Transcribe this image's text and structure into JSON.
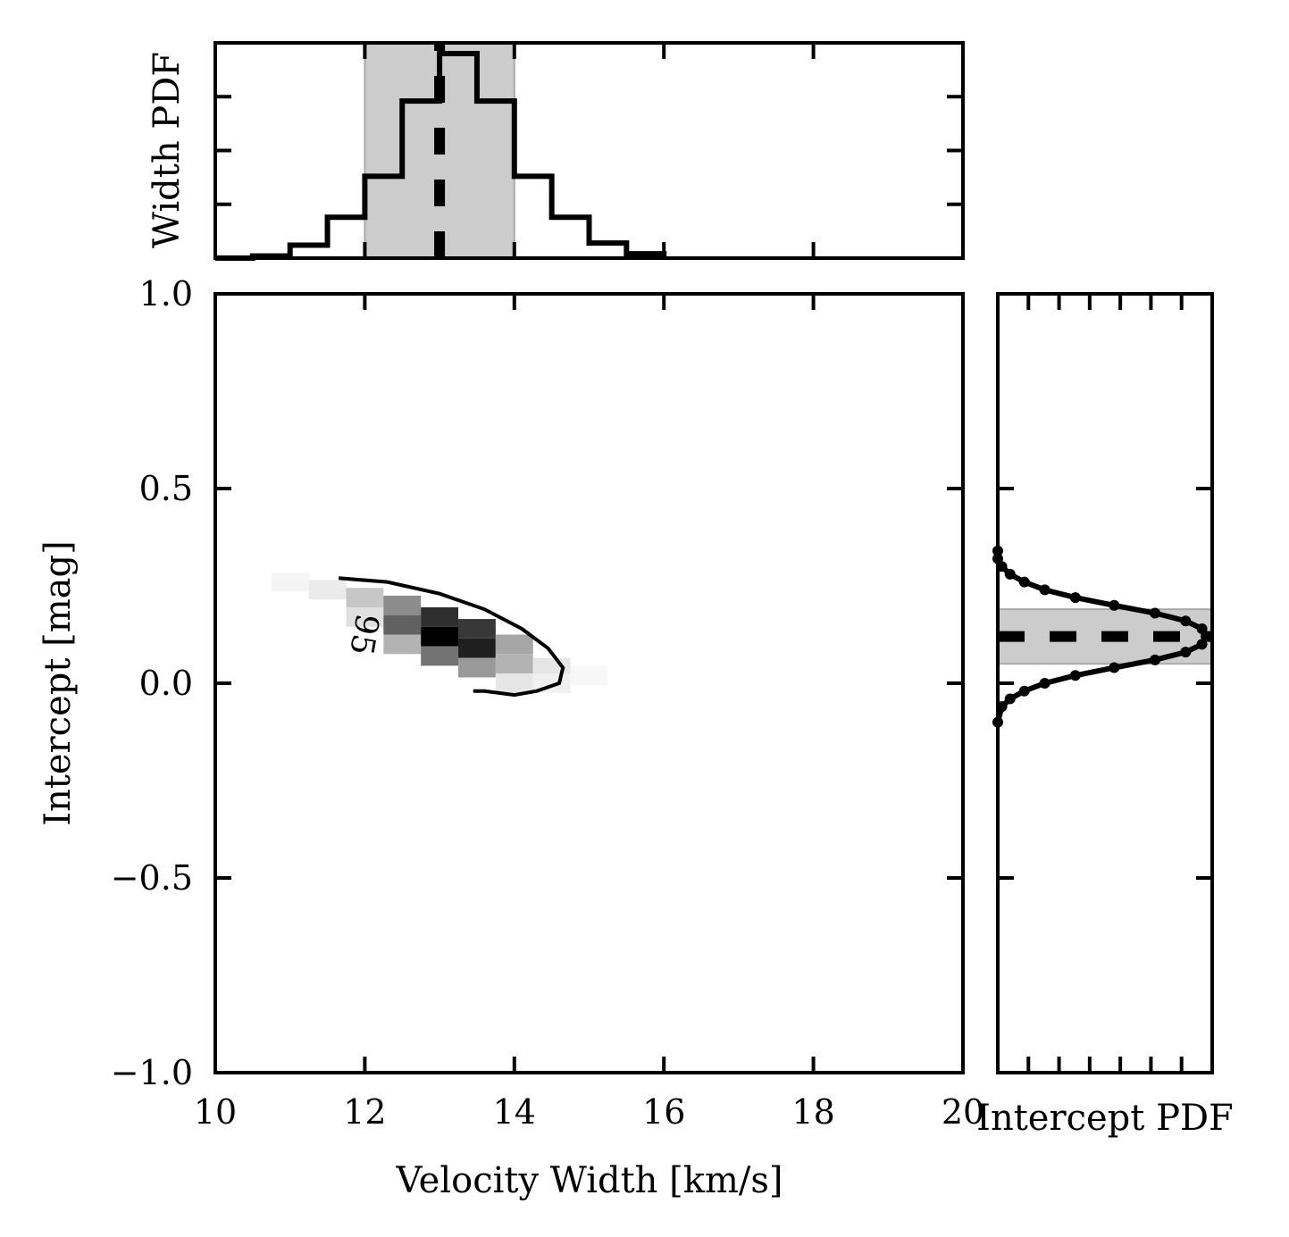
{
  "chart_data": [
    {
      "panel": "main",
      "type": "heatmap",
      "xlabel": "Velocity Width [km/s]",
      "ylabel": "Intercept [mag]",
      "xlim": [
        10,
        20
      ],
      "ylim": [
        -1.0,
        1.0
      ],
      "xticks": [
        10,
        12,
        14,
        16,
        18,
        20
      ],
      "xtick_labels": [
        "10",
        "12",
        "14",
        "16",
        "18",
        "20"
      ],
      "yticks": [
        -1.0,
        -0.5,
        0.0,
        0.5,
        1.0
      ],
      "ytick_labels": [
        "−1.0",
        "−0.5",
        "0.0",
        "0.5",
        "1.0"
      ],
      "colormap": "gray_r",
      "density_peak": {
        "x": 13.1,
        "y": 0.12
      },
      "density_cells": [
        {
          "x": 11.0,
          "y": 0.26,
          "v": 0.04
        },
        {
          "x": 11.5,
          "y": 0.24,
          "v": 0.08
        },
        {
          "x": 12.0,
          "y": 0.22,
          "v": 0.22
        },
        {
          "x": 12.0,
          "y": 0.17,
          "v": 0.12
        },
        {
          "x": 12.5,
          "y": 0.2,
          "v": 0.45
        },
        {
          "x": 12.5,
          "y": 0.15,
          "v": 0.62
        },
        {
          "x": 12.5,
          "y": 0.1,
          "v": 0.3
        },
        {
          "x": 13.0,
          "y": 0.17,
          "v": 0.82
        },
        {
          "x": 13.0,
          "y": 0.12,
          "v": 1.0
        },
        {
          "x": 13.0,
          "y": 0.07,
          "v": 0.55
        },
        {
          "x": 13.5,
          "y": 0.14,
          "v": 0.78
        },
        {
          "x": 13.5,
          "y": 0.09,
          "v": 0.88
        },
        {
          "x": 13.5,
          "y": 0.04,
          "v": 0.4
        },
        {
          "x": 14.0,
          "y": 0.1,
          "v": 0.35
        },
        {
          "x": 14.0,
          "y": 0.05,
          "v": 0.3
        },
        {
          "x": 14.0,
          "y": 0.0,
          "v": 0.1
        },
        {
          "x": 14.5,
          "y": 0.04,
          "v": 0.1
        },
        {
          "x": 14.5,
          "y": 0.0,
          "v": 0.06
        },
        {
          "x": 15.0,
          "y": 0.02,
          "v": 0.03
        }
      ],
      "contour": {
        "label": "95",
        "points": [
          [
            11.65,
            0.27
          ],
          [
            12.3,
            0.26
          ],
          [
            13.0,
            0.23
          ],
          [
            13.6,
            0.19
          ],
          [
            14.1,
            0.14
          ],
          [
            14.45,
            0.09
          ],
          [
            14.65,
            0.04
          ],
          [
            14.6,
            0.0
          ],
          [
            14.3,
            -0.02
          ],
          [
            14.0,
            -0.03
          ],
          [
            13.6,
            -0.02
          ],
          [
            13.45,
            -0.02
          ]
        ]
      }
    },
    {
      "panel": "top",
      "type": "bar",
      "ylabel": "Width PDF",
      "xlim": [
        10,
        20
      ],
      "bin_edges": [
        10.0,
        10.5,
        11.0,
        11.5,
        12.0,
        12.5,
        13.0,
        13.5,
        14.0,
        14.5,
        15.0,
        15.5,
        16.0
      ],
      "values": [
        0.0,
        0.01,
        0.06,
        0.19,
        0.38,
        0.73,
        0.95,
        0.73,
        0.38,
        0.19,
        0.07,
        0.02
      ],
      "ylim": [
        0,
        1.0
      ],
      "median": 13.0,
      "shaded_range": [
        12.0,
        14.0
      ]
    },
    {
      "panel": "right",
      "type": "line",
      "xlabel": "Intercept PDF",
      "ylim": [
        -1.0,
        1.0
      ],
      "y": [
        -0.1,
        -0.06,
        -0.04,
        -0.02,
        0.0,
        0.02,
        0.04,
        0.06,
        0.08,
        0.1,
        0.12,
        0.14,
        0.16,
        0.18,
        0.2,
        0.22,
        0.24,
        0.26,
        0.28,
        0.3,
        0.32,
        0.34
      ],
      "values": [
        0.0,
        0.02,
        0.06,
        0.13,
        0.23,
        0.38,
        0.57,
        0.77,
        0.92,
        1.0,
        1.02,
        1.0,
        0.92,
        0.77,
        0.57,
        0.38,
        0.23,
        0.13,
        0.06,
        0.02,
        0.0,
        0.0
      ],
      "median": 0.12,
      "shaded_range": [
        0.05,
        0.19
      ]
    }
  ]
}
